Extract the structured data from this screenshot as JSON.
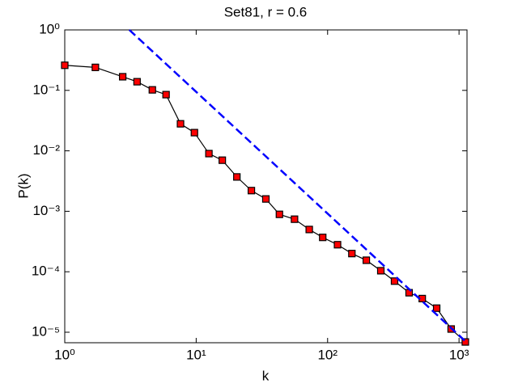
{
  "chart_data": {
    "type": "line",
    "title": "Set81, r = 0.6",
    "xlabel": "k",
    "ylabel": "P(k)",
    "xscale": "log",
    "yscale": "log",
    "xlim": [
      1,
      1150
    ],
    "ylim": [
      6.7e-06,
      1
    ],
    "xticks": [
      {
        "value": 1,
        "label": "10⁰"
      },
      {
        "value": 10,
        "label": "10¹"
      },
      {
        "value": 100,
        "label": "10²"
      },
      {
        "value": 1000,
        "label": "10³"
      }
    ],
    "yticks": [
      {
        "value": 1e-05,
        "label": "10⁻⁵"
      },
      {
        "value": 0.0001,
        "label": "10⁻⁴"
      },
      {
        "value": 0.001,
        "label": "10⁻³"
      },
      {
        "value": 0.01,
        "label": "10⁻²"
      },
      {
        "value": 0.1,
        "label": "10⁻¹"
      },
      {
        "value": 1,
        "label": "10⁰"
      }
    ],
    "series": [
      {
        "color": "#000000",
        "marker_color": "#ff0000",
        "marker": "square",
        "x": [
          1,
          1.71,
          2.76,
          3.55,
          4.64,
          5.9,
          7.6,
          9.7,
          12.5,
          15.8,
          20.4,
          26.3,
          33.9,
          43,
          56,
          72.5,
          91.8,
          119,
          153,
          197,
          254,
          323,
          417,
          525,
          676,
          871,
          1117
        ],
        "values": [
          0.26,
          0.24,
          0.168,
          0.139,
          0.102,
          0.085,
          0.028,
          0.02,
          0.009,
          0.007,
          0.0037,
          0.0022,
          0.0016,
          0.00089,
          0.00074,
          0.0005,
          0.00037,
          0.00028,
          0.0002,
          0.000155,
          0.000104,
          7e-05,
          4.5e-05,
          3.6e-05,
          2.5e-05,
          1.13e-05,
          6.9e-06
        ]
      },
      {
        "color": "#0000ff",
        "dashed": true,
        "x": [
          3.1,
          1150
        ],
        "values": [
          1,
          6.7e-06
        ]
      }
    ]
  }
}
